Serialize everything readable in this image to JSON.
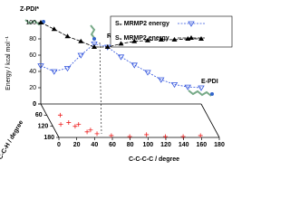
{
  "chart_data": {
    "type": "line3d",
    "annotations": [
      "Z-PDI*",
      "RS40",
      "E-PDI"
    ],
    "ylabel": "Energy / kcal mol⁻¹",
    "xlabel": "C-C-C-C / degree",
    "zlabel": "H-C-C-H / degree",
    "x": [
      0,
      15,
      30,
      45,
      60,
      75,
      90,
      105,
      120,
      135,
      150,
      165,
      180
    ],
    "series": [
      {
        "name": "S₀ MRMP2 energy",
        "color": "#3355dd",
        "values": [
          47,
          40,
          44,
          60,
          74,
          70,
          58,
          48,
          39,
          30,
          24,
          21,
          20
        ]
      },
      {
        "name": "S₁ MRMP2 energy",
        "color": "#000000",
        "values": [
          100,
          92,
          83,
          77,
          70,
          70,
          74,
          77,
          78,
          79,
          79,
          80,
          80
        ]
      }
    ],
    "projection": {
      "color": "#ee2222",
      "x": [
        15,
        20,
        25,
        30,
        35,
        45,
        60,
        80,
        100,
        120,
        140,
        160,
        10,
        40
      ],
      "z": [
        60,
        100,
        120,
        110,
        150,
        160,
        170,
        175,
        165,
        175,
        175,
        170,
        110,
        140
      ]
    },
    "xlim": [
      0,
      180
    ],
    "xticks": [
      0,
      20,
      40,
      60,
      80,
      100,
      120,
      140,
      160,
      180
    ],
    "ylim": [
      0,
      100
    ],
    "yticks": [
      0,
      20,
      40,
      60,
      80,
      100
    ],
    "zlim": [
      0,
      180
    ],
    "zticks": [
      0,
      60,
      120,
      180
    ]
  }
}
